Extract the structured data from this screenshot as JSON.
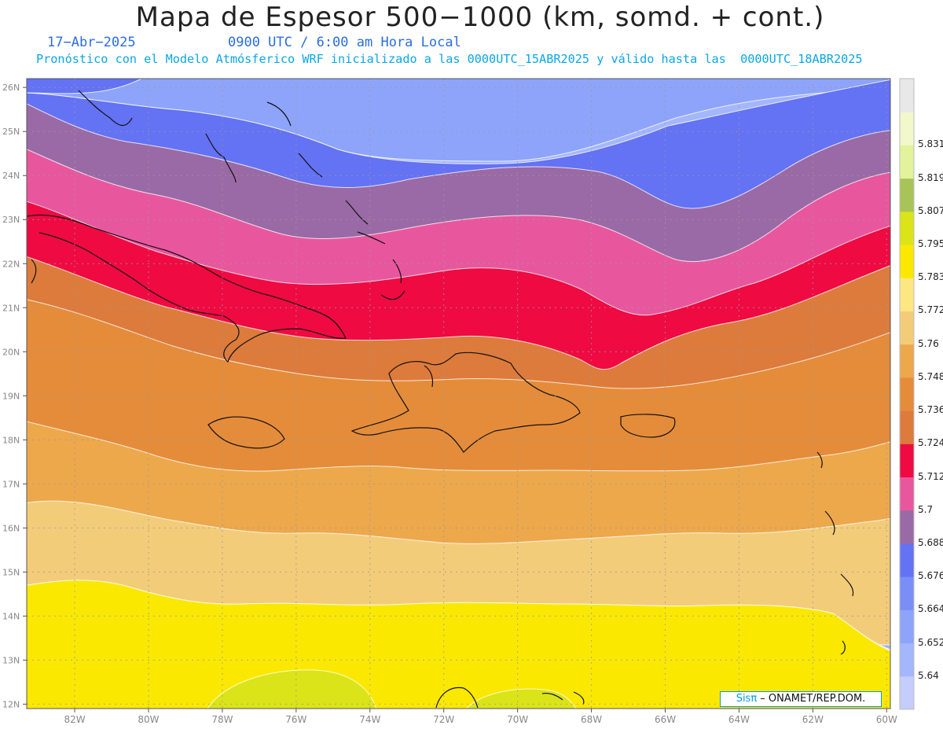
{
  "header": {
    "title": "Mapa de Espesor 500−1000 (km, somd. + cont.)",
    "date": "17−Abr−2025",
    "time": "0900 UTC / 6:00 am Hora Local",
    "forecast_note": "Pronóstico con el Modelo Atmósferico WRF inicializado a las 0000UTC_15ABR2025 y válido hasta las  0000UTC_18ABR2025"
  },
  "map": {
    "lon_range": [
      -83.3,
      -59.9
    ],
    "lat_range": [
      11.9,
      26.2
    ],
    "lon_ticks": [
      "82W",
      "80W",
      "78W",
      "76W",
      "74W",
      "72W",
      "70W",
      "68W",
      "66W",
      "64W",
      "62W",
      "60W"
    ],
    "lat_ticks": [
      "12N",
      "13N",
      "14N",
      "15N",
      "16N",
      "17N",
      "18N",
      "19N",
      "20N",
      "21N",
      "22N",
      "23N",
      "24N",
      "25N",
      "26N"
    ],
    "grid": true
  },
  "colorbar": {
    "labels": [
      "5.64",
      "5.652",
      "5.664",
      "5.676",
      "5.688",
      "5.7",
      "5.712",
      "5.724",
      "5.736",
      "5.748",
      "5.76",
      "5.772",
      "5.783",
      "5.795",
      "5.807",
      "5.819",
      "5.831"
    ],
    "colors": [
      "#c4cdfc",
      "#a4b6fc",
      "#8ea4fa",
      "#7b8ef8",
      "#6472f4",
      "#9a6aa6",
      "#e8579e",
      "#ef0a42",
      "#dd7b3c",
      "#e58c3a",
      "#eda84c",
      "#f3cc7a",
      "#fde783",
      "#fbe800",
      "#dbe418",
      "#a8c458",
      "#e2f39c",
      "#f2f7cc",
      "#e8e8e8"
    ]
  },
  "credit": {
    "brand": "Sisπ",
    "text": " – ONAMET/REP.DOM."
  }
}
